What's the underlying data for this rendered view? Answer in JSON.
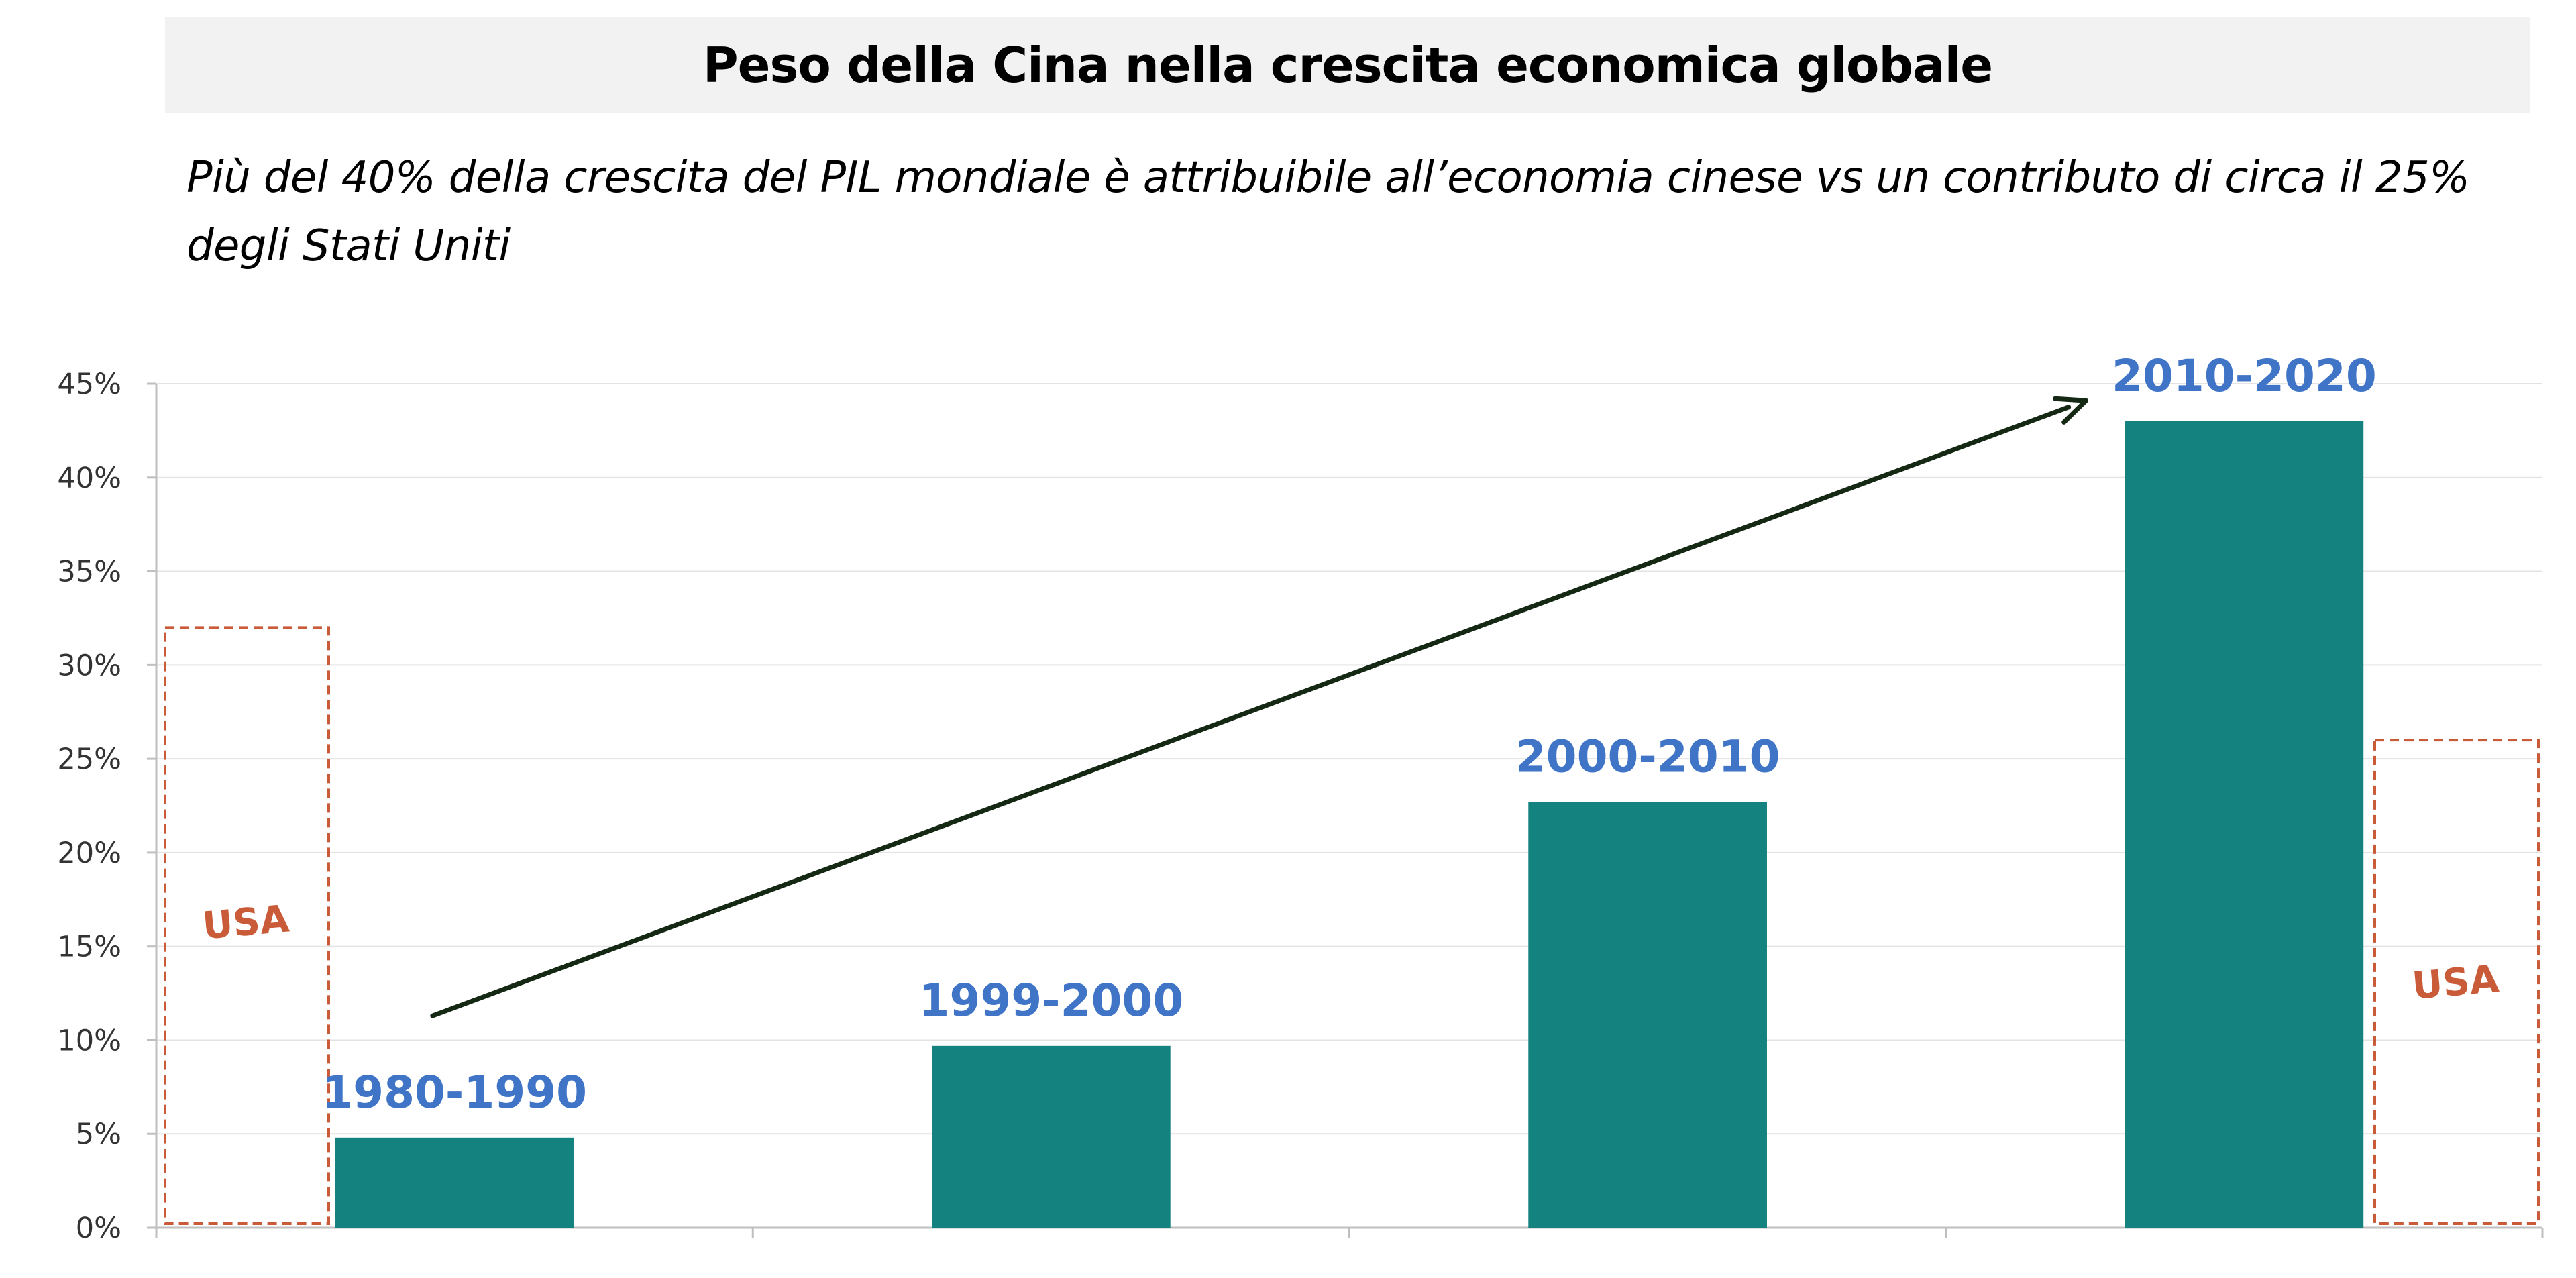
{
  "chart_data": {
    "type": "bar",
    "title": "Peso della Cina nella crescita economica globale",
    "subtitle": "Più del 40% della crescita del PIL mondiale è attribuibile all’economia cinese vs un contributo di circa il 25% degli Stati Uniti",
    "categories": [
      "1980-1990",
      "1999-2000",
      "2000-2010",
      "2010-2020"
    ],
    "values": [
      4.8,
      9.7,
      22.7,
      43.0
    ],
    "value_unit": "%",
    "ylim": [
      0,
      45
    ],
    "yticks": [
      0,
      5,
      10,
      15,
      20,
      25,
      30,
      35,
      40,
      45
    ],
    "ytick_labels": [
      "0%",
      "5%",
      "10%",
      "15%",
      "20%",
      "25%",
      "30%",
      "35%",
      "40%",
      "45%"
    ],
    "grid": true,
    "bar_color": "#148380",
    "label_color": "#3f74c6",
    "annotations": {
      "trend_arrow": {
        "from_category": "1980-1990",
        "to_category": "2010-2020"
      },
      "usa_boxes": [
        {
          "label": "USA",
          "value": 32,
          "position": "left"
        },
        {
          "label": "USA",
          "value": 26,
          "position": "right"
        }
      ],
      "usa_color": "#c95b39"
    }
  }
}
